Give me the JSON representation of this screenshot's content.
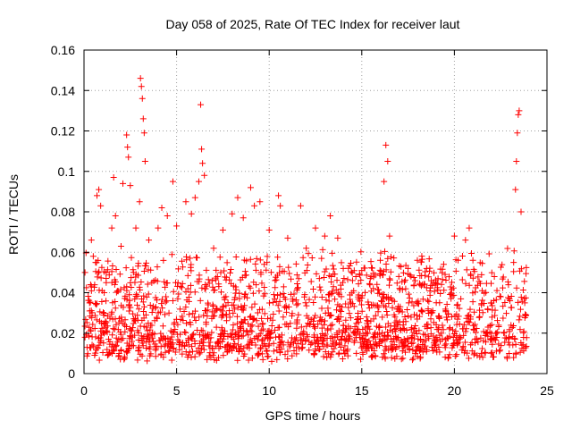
{
  "chart_data": {
    "type": "scatter",
    "title": "Day 058 of 2025, Rate Of TEC Index for receiver laut",
    "xlabel": "GPS time / hours",
    "ylabel": "ROTI / TECUs",
    "xlim": [
      0,
      25
    ],
    "ylim": [
      0,
      0.16
    ],
    "x_ticks": [
      0,
      5,
      10,
      15,
      20,
      25
    ],
    "x_tick_labels": [
      "0",
      "5",
      "10",
      "15",
      "20",
      "25"
    ],
    "y_ticks": [
      0,
      0.02,
      0.04,
      0.06,
      0.08,
      0.1,
      0.12,
      0.14,
      0.16
    ],
    "y_tick_labels": [
      "0",
      "0.02",
      "0.04",
      "0.06",
      "0.08",
      "0.1",
      "0.12",
      "0.14",
      "0.16"
    ],
    "grid": true,
    "marker": "+",
    "series_color": "#ff0000",
    "series": [
      {
        "name": "ROTI",
        "points": [
          [
            0.3,
            0.035
          ],
          [
            0.4,
            0.066
          ],
          [
            0.5,
            0.058
          ],
          [
            0.7,
            0.088
          ],
          [
            0.8,
            0.091
          ],
          [
            0.9,
            0.083
          ],
          [
            1.2,
            0.045
          ],
          [
            1.5,
            0.072
          ],
          [
            1.6,
            0.097
          ],
          [
            1.7,
            0.078
          ],
          [
            2.0,
            0.063
          ],
          [
            2.1,
            0.094
          ],
          [
            2.3,
            0.118
          ],
          [
            2.35,
            0.112
          ],
          [
            2.4,
            0.107
          ],
          [
            2.5,
            0.093
          ],
          [
            2.8,
            0.072
          ],
          [
            3.0,
            0.085
          ],
          [
            3.05,
            0.146
          ],
          [
            3.1,
            0.142
          ],
          [
            3.15,
            0.136
          ],
          [
            3.2,
            0.126
          ],
          [
            3.25,
            0.119
          ],
          [
            3.3,
            0.105
          ],
          [
            3.5,
            0.066
          ],
          [
            4.0,
            0.072
          ],
          [
            4.2,
            0.082
          ],
          [
            4.5,
            0.078
          ],
          [
            4.8,
            0.095
          ],
          [
            5.0,
            0.073
          ],
          [
            5.5,
            0.085
          ],
          [
            5.8,
            0.079
          ],
          [
            6.0,
            0.087
          ],
          [
            6.2,
            0.095
          ],
          [
            6.3,
            0.133
          ],
          [
            6.35,
            0.111
          ],
          [
            6.4,
            0.104
          ],
          [
            6.5,
            0.098
          ],
          [
            7.0,
            0.062
          ],
          [
            7.5,
            0.071
          ],
          [
            8.0,
            0.079
          ],
          [
            8.3,
            0.087
          ],
          [
            8.6,
            0.077
          ],
          [
            9.0,
            0.092
          ],
          [
            9.2,
            0.083
          ],
          [
            9.5,
            0.085
          ],
          [
            10.0,
            0.071
          ],
          [
            10.5,
            0.088
          ],
          [
            10.6,
            0.083
          ],
          [
            11.0,
            0.067
          ],
          [
            11.7,
            0.083
          ],
          [
            12.0,
            0.062
          ],
          [
            12.5,
            0.072
          ],
          [
            13.0,
            0.068
          ],
          [
            13.3,
            0.078
          ],
          [
            13.7,
            0.067
          ],
          [
            14.0,
            0.052
          ],
          [
            14.5,
            0.046
          ],
          [
            15.0,
            0.051
          ],
          [
            15.5,
            0.048
          ],
          [
            16.0,
            0.056
          ],
          [
            16.2,
            0.095
          ],
          [
            16.3,
            0.113
          ],
          [
            16.4,
            0.105
          ],
          [
            16.5,
            0.068
          ],
          [
            17.0,
            0.048
          ],
          [
            17.5,
            0.052
          ],
          [
            18.0,
            0.056
          ],
          [
            18.5,
            0.052
          ],
          [
            19.0,
            0.045
          ],
          [
            19.5,
            0.049
          ],
          [
            20.0,
            0.068
          ],
          [
            20.2,
            0.056
          ],
          [
            20.6,
            0.066
          ],
          [
            20.8,
            0.072
          ],
          [
            21.0,
            0.056
          ],
          [
            21.5,
            0.041
          ],
          [
            22.0,
            0.035
          ],
          [
            22.5,
            0.038
          ],
          [
            23.0,
            0.036
          ],
          [
            23.2,
            0.055
          ],
          [
            23.3,
            0.091
          ],
          [
            23.35,
            0.105
          ],
          [
            23.4,
            0.119
          ],
          [
            23.45,
            0.128
          ],
          [
            23.5,
            0.13
          ],
          [
            23.6,
            0.08
          ],
          [
            23.8,
            0.035
          ]
        ]
      }
    ]
  }
}
